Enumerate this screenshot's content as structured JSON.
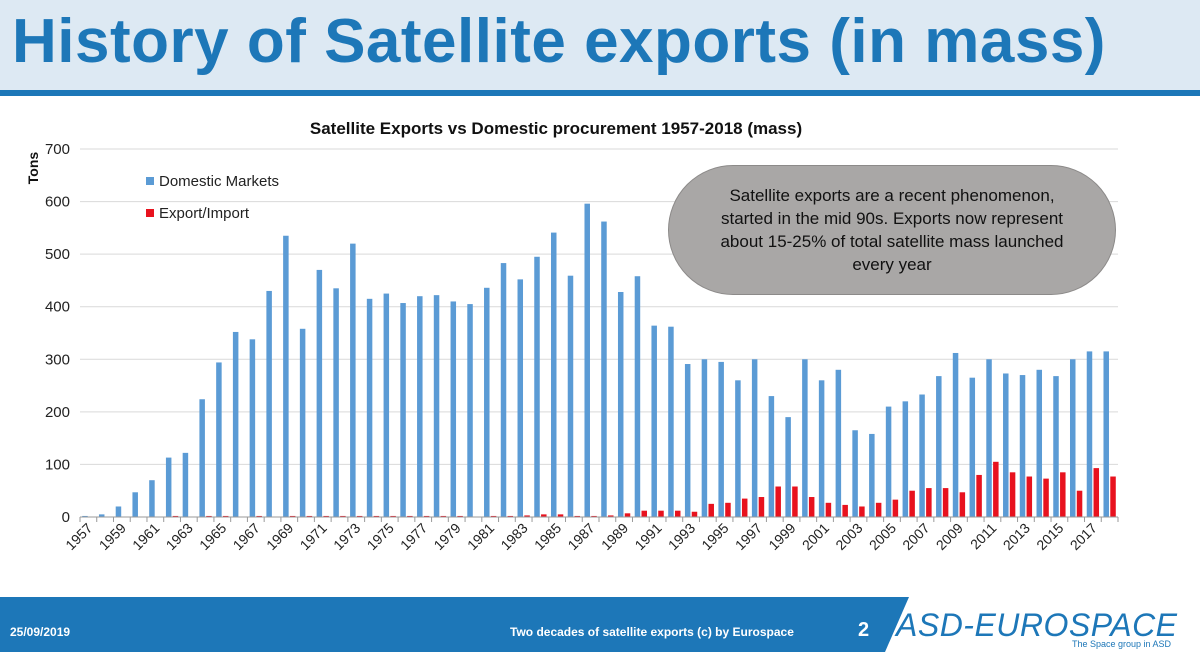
{
  "slide": {
    "title": "History of Satellite exports (in mass)",
    "callout": "Satellite exports are a recent phenomenon, started in the mid 90s. Exports now represent about 15-25% of total satellite mass launched every year",
    "footer": {
      "date": "25/09/2019",
      "caption": "Two decades of satellite exports (c) by Eurospace",
      "page": "2",
      "logo": "ASD-EUROSPACE",
      "tagline": "The Space group in ASD"
    }
  },
  "chart_data": {
    "type": "bar",
    "title": "Satellite Exports vs Domestic procurement 1957-2018 (mass)",
    "ylabel": "Tons",
    "xlabel": "",
    "ylim": [
      0,
      700
    ],
    "yticks": [
      0,
      100,
      200,
      300,
      400,
      500,
      600,
      700
    ],
    "grid": true,
    "legend_position": "top-left",
    "categories": [
      1957,
      1958,
      1959,
      1960,
      1961,
      1962,
      1963,
      1964,
      1965,
      1966,
      1967,
      1968,
      1969,
      1970,
      1971,
      1972,
      1973,
      1974,
      1975,
      1976,
      1977,
      1978,
      1979,
      1980,
      1981,
      1982,
      1983,
      1984,
      1985,
      1986,
      1987,
      1988,
      1989,
      1990,
      1991,
      1992,
      1993,
      1994,
      1995,
      1996,
      1997,
      1998,
      1999,
      2000,
      2001,
      2002,
      2003,
      2004,
      2005,
      2006,
      2007,
      2008,
      2009,
      2010,
      2011,
      2012,
      2013,
      2014,
      2015,
      2016,
      2017,
      2018
    ],
    "xtick_labels": [
      "1957",
      "1959",
      "1961",
      "1963",
      "1965",
      "1967",
      "1969",
      "1971",
      "1973",
      "1975",
      "1977",
      "1979",
      "1981",
      "1983",
      "1985",
      "1987",
      "1989",
      "1991",
      "1993",
      "1995",
      "1997",
      "1999",
      "2001",
      "2003",
      "2005",
      "2007",
      "2009",
      "2011",
      "2013",
      "2015",
      "2017"
    ],
    "series": [
      {
        "name": "Domestic Markets",
        "color": "#5b9bd5",
        "values": [
          2,
          5,
          20,
          47,
          70,
          113,
          122,
          224,
          294,
          352,
          338,
          430,
          535,
          358,
          470,
          435,
          520,
          415,
          425,
          407,
          420,
          422,
          410,
          405,
          436,
          483,
          452,
          495,
          541,
          459,
          596,
          562,
          428,
          458,
          364,
          362,
          291,
          300,
          295,
          260,
          300,
          230,
          190,
          300,
          260,
          280,
          165,
          158,
          210,
          220,
          233,
          268,
          312,
          265,
          300,
          273,
          270,
          280,
          268,
          300,
          315,
          315
        ]
      },
      {
        "name": "Export/Import",
        "color": "#e8121e",
        "values": [
          0,
          0,
          0,
          0,
          0,
          2,
          0,
          2,
          2,
          0,
          2,
          0,
          2,
          2,
          2,
          2,
          2,
          2,
          2,
          2,
          2,
          2,
          2,
          0,
          2,
          2,
          3,
          5,
          5,
          2,
          2,
          3,
          7,
          12,
          12,
          12,
          10,
          25,
          27,
          35,
          38,
          58,
          58,
          38,
          27,
          23,
          20,
          27,
          33,
          50,
          55,
          55,
          47,
          80,
          105,
          85,
          77,
          73,
          85,
          50,
          93,
          77
        ]
      }
    ]
  }
}
